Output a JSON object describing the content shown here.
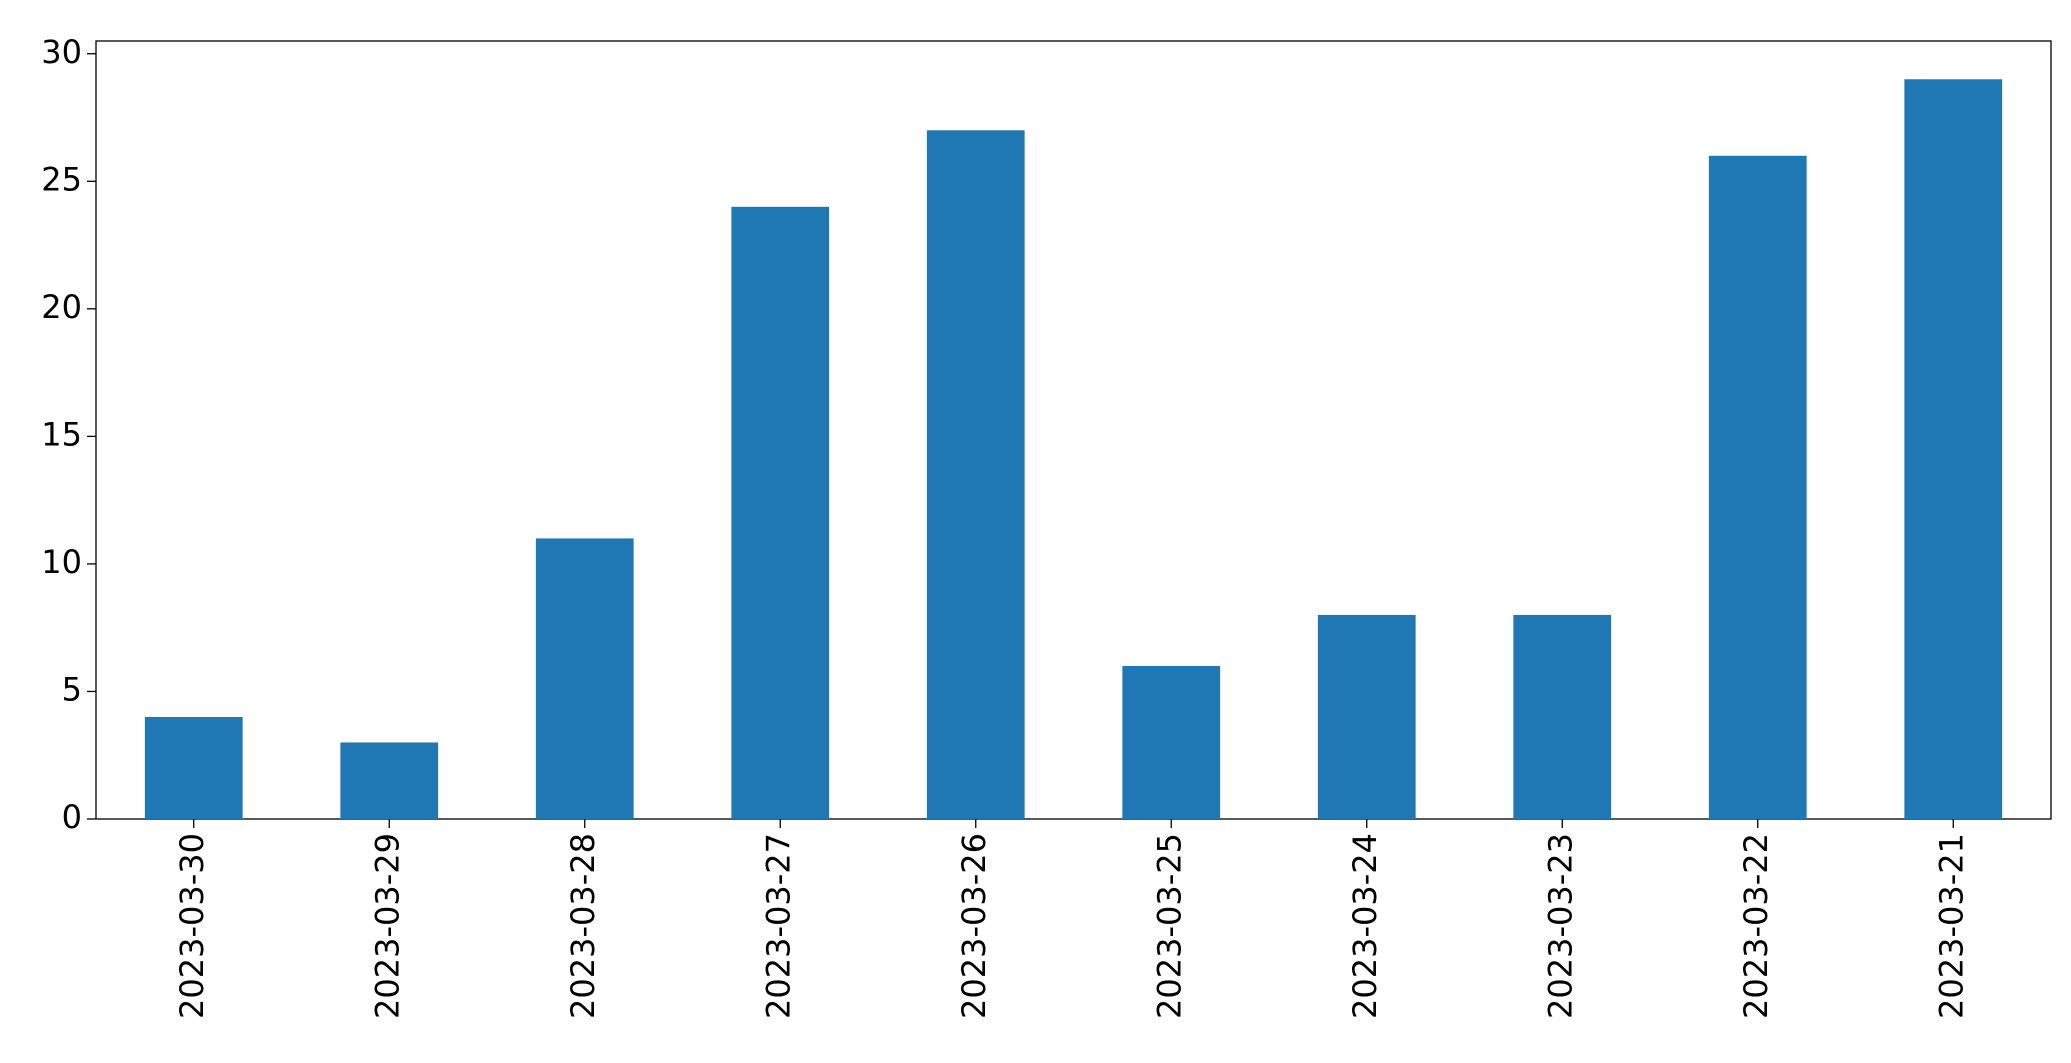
{
  "chart_data": {
    "type": "bar",
    "categories": [
      "2023-03-30",
      "2023-03-29",
      "2023-03-28",
      "2023-03-27",
      "2023-03-26",
      "2023-03-25",
      "2023-03-24",
      "2023-03-23",
      "2023-03-22",
      "2023-03-21"
    ],
    "values": [
      4,
      3,
      11,
      24,
      27,
      6,
      8,
      8,
      26,
      29
    ],
    "color": "#1f77b4",
    "ylim": [
      0,
      30.5
    ],
    "yticks": [
      0,
      5,
      10,
      15,
      20,
      25,
      30
    ],
    "grid": false
  }
}
